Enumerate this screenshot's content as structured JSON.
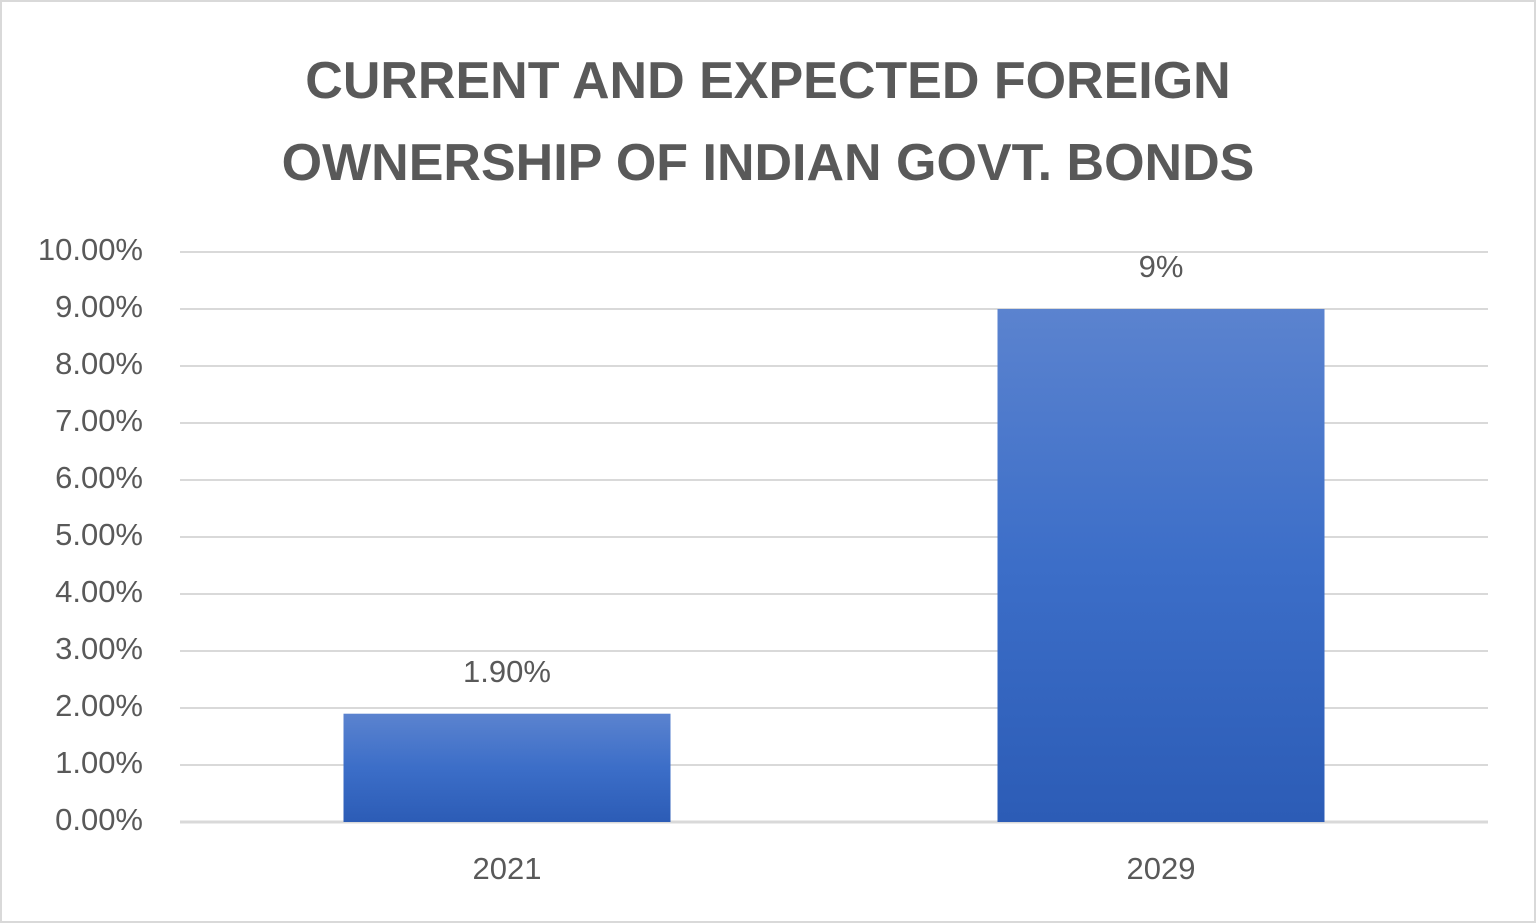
{
  "chart_data": {
    "type": "bar",
    "title": "CURRENT AND EXPECTED FOREIGN OWNERSHIP OF INDIAN GOVT. BONDS",
    "categories": [
      "2021",
      "2029"
    ],
    "values": [
      1.9,
      9
    ],
    "value_labels": [
      "1.90%",
      "9%"
    ],
    "color": "#3a6cc6",
    "ylim": [
      0,
      10
    ],
    "yticks": [
      {
        "value": 0,
        "label": "0.00%"
      },
      {
        "value": 1,
        "label": "1.00%"
      },
      {
        "value": 2,
        "label": "2.00%"
      },
      {
        "value": 3,
        "label": "3.00%"
      },
      {
        "value": 4,
        "label": "4.00%"
      },
      {
        "value": 5,
        "label": "5.00%"
      },
      {
        "value": 6,
        "label": "6.00%"
      },
      {
        "value": 7,
        "label": "7.00%"
      },
      {
        "value": 8,
        "label": "8.00%"
      },
      {
        "value": 9,
        "label": "9.00%"
      },
      {
        "value": 10,
        "label": "10.00%"
      }
    ],
    "grid": true
  }
}
